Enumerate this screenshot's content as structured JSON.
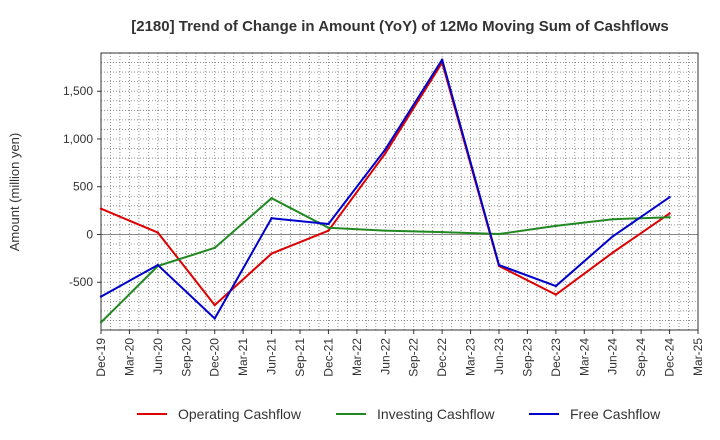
{
  "chart_data": {
    "type": "line",
    "title": "[2180]  Trend of Change in Amount (YoY) of 12Mo Moving Sum of Cashflows",
    "ylabel": "Amount (million yen)",
    "xlabel": "",
    "ylim": [
      -1000,
      1900
    ],
    "yticks": [
      -500,
      0,
      500,
      1000,
      1500
    ],
    "ytick_labels": [
      "-500",
      "0",
      "500",
      "1,000",
      "1,500"
    ],
    "categories": [
      "Dec-19",
      "Mar-20",
      "Jun-20",
      "Sep-20",
      "Dec-20",
      "Mar-21",
      "Jun-21",
      "Sep-21",
      "Dec-21",
      "Mar-22",
      "Jun-22",
      "Sep-22",
      "Dec-22",
      "Mar-23",
      "Jun-23",
      "Sep-23",
      "Dec-23",
      "Mar-24",
      "Jun-24",
      "Sep-24",
      "Dec-24",
      "Mar-25"
    ],
    "grid": true,
    "legend_position": "bottom",
    "series": [
      {
        "name": "Operating Cashflow",
        "color": "#dd0000",
        "x": [
          "Dec-19",
          "Jun-20",
          "Dec-20",
          "Jun-21",
          "Dec-21",
          "Jun-22",
          "Dec-22",
          "Jun-23",
          "Dec-23",
          "Jun-24",
          "Dec-24"
        ],
        "values": [
          270,
          20,
          -740,
          -200,
          40,
          850,
          1800,
          -330,
          -630,
          -190,
          220
        ]
      },
      {
        "name": "Investing Cashflow",
        "color": "#228822",
        "x": [
          "Dec-19",
          "Jun-20",
          "Dec-20",
          "Jun-21",
          "Dec-21",
          "Jun-22",
          "Dec-22",
          "Jun-23",
          "Dec-23",
          "Jun-24",
          "Dec-24"
        ],
        "values": [
          -920,
          -330,
          -140,
          380,
          70,
          40,
          25,
          5,
          90,
          160,
          180
        ]
      },
      {
        "name": "Free Cashflow",
        "color": "#0000cc",
        "x": [
          "Dec-19",
          "Jun-20",
          "Dec-20",
          "Jun-21",
          "Dec-21",
          "Jun-22",
          "Dec-22",
          "Jun-23",
          "Dec-23",
          "Jun-24",
          "Dec-24"
        ],
        "values": [
          -650,
          -320,
          -880,
          170,
          110,
          890,
          1830,
          -320,
          -540,
          -20,
          390
        ]
      }
    ]
  }
}
